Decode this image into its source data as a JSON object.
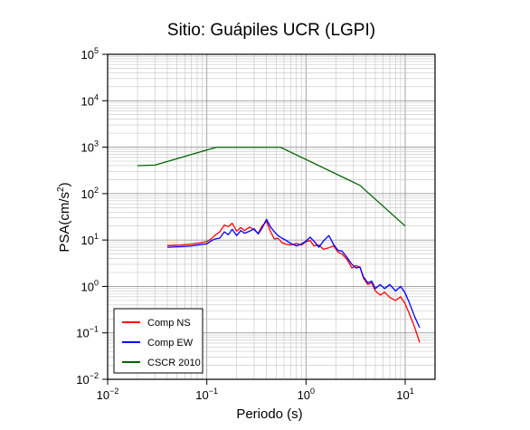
{
  "chart_data": {
    "type": "line",
    "title": "Sitio: Guápiles UCR (LGPI)",
    "xlabel": "Periodo (s)",
    "ylabel": {
      "base": "PSA(cm/s",
      "sup": "2",
      "close": ")"
    },
    "xscale": "log",
    "yscale": "log",
    "xlim": [
      0.01,
      20
    ],
    "ylim": [
      0.01,
      100000
    ],
    "xticks": [
      {
        "value": 0.01,
        "base": "10",
        "exp": "−2"
      },
      {
        "value": 0.1,
        "base": "10",
        "exp": "−1"
      },
      {
        "value": 1,
        "base": "10",
        "exp": "0"
      },
      {
        "value": 10,
        "base": "10",
        "exp": "1"
      }
    ],
    "yticks": [
      {
        "value": 0.01,
        "base": "10",
        "exp": "−2"
      },
      {
        "value": 0.1,
        "base": "10",
        "exp": "−1"
      },
      {
        "value": 1,
        "base": "10",
        "exp": "0"
      },
      {
        "value": 10,
        "base": "10",
        "exp": "1"
      },
      {
        "value": 100,
        "base": "10",
        "exp": "2"
      },
      {
        "value": 1000,
        "base": "10",
        "exp": "3"
      },
      {
        "value": 10000,
        "base": "10",
        "exp": "4"
      },
      {
        "value": 100000,
        "base": "10",
        "exp": "5"
      }
    ],
    "grid": true,
    "legend_position": "bottom-left",
    "series": [
      {
        "name": "Comp NS",
        "color": "#ff0000",
        "x": [
          0.04,
          0.055,
          0.07,
          0.085,
          0.1,
          0.11,
          0.12,
          0.135,
          0.15,
          0.165,
          0.18,
          0.2,
          0.22,
          0.24,
          0.27,
          0.3,
          0.33,
          0.36,
          0.4,
          0.44,
          0.48,
          0.52,
          0.57,
          0.62,
          0.7,
          0.8,
          0.9,
          1.0,
          1.1,
          1.2,
          1.35,
          1.5,
          1.7,
          1.9,
          2.1,
          2.3,
          2.6,
          2.9,
          3.2,
          3.5,
          3.8,
          4.2,
          4.6,
          5.0,
          5.6,
          6.2,
          7.0,
          8.0,
          9.0,
          10.0,
          11.0,
          12.5,
          14.0
        ],
        "y": [
          7.6,
          7.8,
          8.2,
          8.6,
          9.3,
          10.5,
          12.5,
          15.0,
          21.0,
          19.5,
          23.0,
          15.5,
          18.5,
          16.0,
          19.0,
          16.5,
          14.0,
          20.0,
          25.0,
          15.0,
          10.5,
          11.0,
          8.8,
          8.2,
          7.8,
          8.4,
          7.8,
          9.2,
          9.8,
          7.5,
          7.8,
          6.3,
          6.8,
          7.5,
          5.5,
          5.0,
          3.8,
          2.5,
          2.8,
          2.6,
          1.5,
          1.1,
          1.2,
          0.8,
          0.65,
          0.75,
          0.58,
          0.5,
          0.6,
          0.42,
          0.26,
          0.13,
          0.062
        ]
      },
      {
        "name": "Comp EW",
        "color": "#0000ff",
        "x": [
          0.04,
          0.055,
          0.07,
          0.085,
          0.1,
          0.11,
          0.12,
          0.135,
          0.15,
          0.165,
          0.18,
          0.2,
          0.22,
          0.24,
          0.27,
          0.3,
          0.33,
          0.36,
          0.4,
          0.44,
          0.48,
          0.52,
          0.57,
          0.62,
          0.7,
          0.8,
          0.9,
          1.0,
          1.1,
          1.2,
          1.35,
          1.5,
          1.7,
          1.9,
          2.1,
          2.3,
          2.6,
          2.9,
          3.2,
          3.5,
          3.8,
          4.2,
          4.6,
          5.0,
          5.6,
          6.2,
          7.0,
          8.0,
          9.0,
          10.0,
          11.0,
          12.5,
          14.0
        ],
        "y": [
          7.0,
          7.2,
          7.5,
          7.9,
          8.3,
          9.5,
          10.5,
          11.0,
          15.0,
          13.0,
          17.0,
          12.5,
          16.0,
          14.0,
          15.5,
          17.5,
          13.5,
          18.0,
          28.0,
          19.0,
          15.0,
          12.5,
          11.0,
          10.0,
          8.5,
          7.5,
          8.2,
          9.5,
          11.5,
          9.5,
          7.0,
          9.5,
          12.5,
          8.0,
          6.0,
          5.8,
          4.2,
          3.0,
          2.5,
          2.6,
          1.6,
          1.2,
          1.3,
          0.9,
          1.1,
          0.9,
          1.1,
          0.8,
          1.0,
          0.72,
          0.45,
          0.22,
          0.13
        ]
      },
      {
        "name": "CSCR 2010",
        "color": "#006400",
        "x": [
          0.02,
          0.03,
          0.125,
          0.55,
          3.5,
          10.0
        ],
        "y": [
          400,
          410,
          1000,
          1000,
          150,
          20
        ]
      }
    ]
  }
}
